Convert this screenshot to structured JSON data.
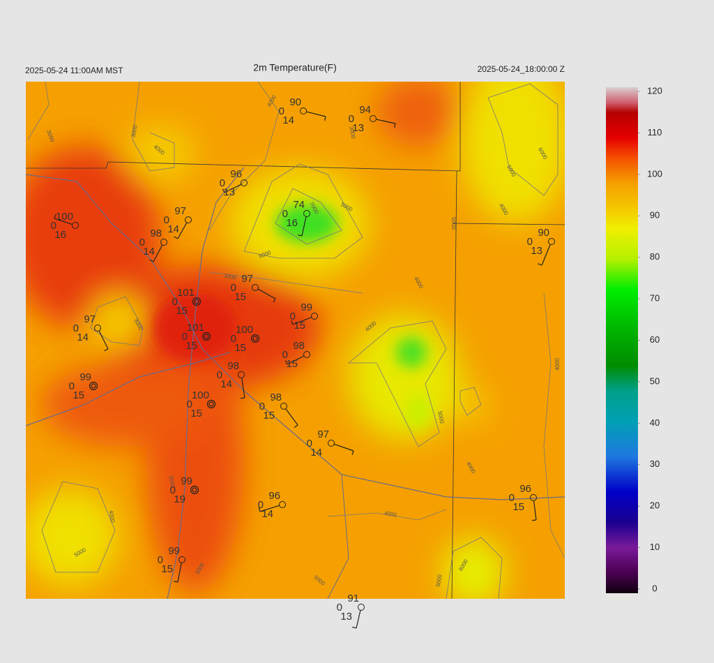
{
  "header": {
    "left": "2025-05-24 11:00AM MST",
    "title": "2m Temperature(F)",
    "right": "2025-05-24_18:00:00 Z"
  },
  "colorbar": {
    "range": [
      0,
      120
    ],
    "ticks": [
      0,
      10,
      20,
      30,
      40,
      50,
      60,
      70,
      80,
      90,
      100,
      110,
      120
    ]
  },
  "stations": [
    {
      "temp": 90,
      "code": 0,
      "dewpoint": 14
    },
    {
      "temp": 94,
      "code": 0,
      "dewpoint": 13
    },
    {
      "temp": 96,
      "code": 0,
      "dewpoint": 13
    },
    {
      "temp": 74,
      "code": 0,
      "dewpoint": 16
    },
    {
      "temp": 100,
      "code": 0,
      "dewpoint": 16
    },
    {
      "temp": 97,
      "code": 0,
      "dewpoint": 14
    },
    {
      "temp": 98,
      "code": 0,
      "dewpoint": 14
    },
    {
      "temp": 90,
      "code": 0,
      "dewpoint": 13
    },
    {
      "temp": 97,
      "code": 0,
      "dewpoint": 15
    },
    {
      "temp": 101,
      "code": 0,
      "dewpoint": 15
    },
    {
      "temp": 99,
      "code": 0,
      "dewpoint": 15
    },
    {
      "temp": 101,
      "code": 0,
      "dewpoint": 15
    },
    {
      "temp": 100,
      "code": 0,
      "dewpoint": 15
    },
    {
      "temp": 97,
      "code": 0,
      "dewpoint": 14
    },
    {
      "temp": 98,
      "code": 0,
      "dewpoint": 15
    },
    {
      "temp": 99,
      "code": 0,
      "dewpoint": 15
    },
    {
      "temp": 98,
      "code": 0,
      "dewpoint": 14
    },
    {
      "temp": 100,
      "code": 0,
      "dewpoint": 15
    },
    {
      "temp": 98,
      "code": 0,
      "dewpoint": 15
    },
    {
      "temp": 97,
      "code": 0,
      "dewpoint": 14
    },
    {
      "temp": 99,
      "code": 0,
      "dewpoint": 19
    },
    {
      "temp": 96,
      "code": 0,
      "dewpoint": 14
    },
    {
      "temp": 96,
      "code": 0,
      "dewpoint": 15
    },
    {
      "temp": 99,
      "code": 0,
      "dewpoint": 15
    },
    {
      "temp": 91,
      "code": 0,
      "dewpoint": 13
    }
  ],
  "contour_labels": [
    4000,
    3000,
    3000,
    4000,
    3000,
    6000,
    5000,
    4000,
    7000,
    5000,
    6000,
    3000,
    5000,
    4000,
    3000,
    4000,
    4000,
    5000,
    4000,
    3000,
    4000,
    4000,
    5000,
    3000,
    5000,
    5000,
    6000
  ]
}
